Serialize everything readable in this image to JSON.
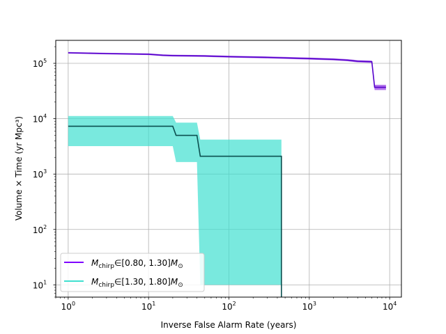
{
  "chart_data": {
    "type": "line",
    "title": "",
    "xlabel": "Inverse False Alarm Rate (years)",
    "ylabel": "Volume × Time (yr Mpc³)",
    "xscale": "log",
    "yscale": "log",
    "xlim": [
      0.7,
      14000
    ],
    "ylim": [
      6,
      260000
    ],
    "grid": true,
    "legend_position": "lower-left",
    "x_ticks": [
      {
        "value": 1,
        "base": "10",
        "exp": "0"
      },
      {
        "value": 10,
        "base": "10",
        "exp": "1"
      },
      {
        "value": 100,
        "base": "10",
        "exp": "2"
      },
      {
        "value": 1000,
        "base": "10",
        "exp": "3"
      },
      {
        "value": 10000,
        "base": "10",
        "exp": "4"
      }
    ],
    "y_ticks": [
      {
        "value": 10,
        "base": "10",
        "exp": "1"
      },
      {
        "value": 100,
        "base": "10",
        "exp": "2"
      },
      {
        "value": 1000,
        "base": "10",
        "exp": "3"
      },
      {
        "value": 10000,
        "base": "10",
        "exp": "4"
      },
      {
        "value": 100000,
        "base": "10",
        "exp": "5"
      }
    ],
    "series": [
      {
        "legend_math": "M",
        "legend_sub": "chirp",
        "legend_range": "∈[0.80, 1.30]",
        "legend_mass": "M",
        "legend_sun": "⊙",
        "line_color": "#5500cc",
        "band_color": "#8a2be2",
        "band_opacity": 0.65,
        "x": [
          1,
          3,
          10,
          15,
          20,
          50,
          100,
          300,
          1000,
          2000,
          3000,
          4000,
          6000,
          6500,
          9000
        ],
        "y": [
          155000,
          150000,
          146000,
          140000,
          138000,
          136000,
          132000,
          128000,
          122000,
          118000,
          114000,
          109000,
          107000,
          37000,
          37000
        ],
        "lower": [
          150000,
          145000,
          141000,
          135000,
          133000,
          131000,
          127000,
          123000,
          117000,
          113000,
          109000,
          104000,
          102000,
          33000,
          33000
        ],
        "upper": [
          160000,
          155000,
          151000,
          145000,
          143000,
          141000,
          137000,
          133000,
          127000,
          123000,
          119000,
          114000,
          112000,
          41000,
          41000
        ]
      },
      {
        "legend_math": "M",
        "legend_sub": "chirp",
        "legend_range": "∈[1.30, 1.80]",
        "legend_mass": "M",
        "legend_sun": "⊙",
        "line_color": "#0b4f4f",
        "band_color": "#40e0d0",
        "band_opacity": 0.7,
        "x": [
          1,
          20,
          22,
          40,
          44,
          450
        ],
        "y": [
          7300,
          7300,
          5000,
          5000,
          2100,
          2100
        ],
        "lower": [
          3200,
          3200,
          1650,
          1650,
          10,
          10
        ],
        "upper": [
          11200,
          11200,
          8500,
          8500,
          4200,
          4200
        ],
        "drop_to": 6
      }
    ]
  },
  "legend_swatch_colors": [
    "#7f00ff",
    "#40e0d0"
  ]
}
